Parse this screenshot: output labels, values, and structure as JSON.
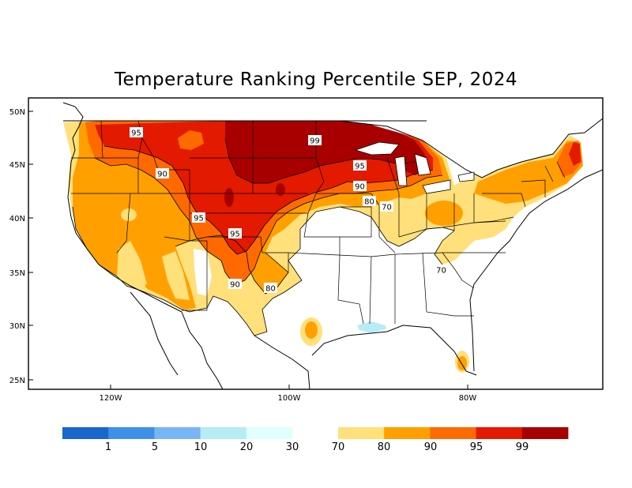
{
  "title": "Temperature Ranking Percentile SEP, 2024",
  "axes": {
    "lat_labels": [
      "50N",
      "45N",
      "40N",
      "35N",
      "30N",
      "25N"
    ],
    "lon_labels": [
      "120W",
      "100W",
      "80W"
    ]
  },
  "contour_labels": [
    "95",
    "90",
    "95",
    "95",
    "99",
    "95",
    "90",
    "80",
    "70",
    "90",
    "80",
    "70"
  ],
  "legend": {
    "labels": [
      "1",
      "5",
      "10",
      "20",
      "30",
      "70",
      "80",
      "90",
      "95",
      "99"
    ],
    "cold_colors": [
      "#1a66cc",
      "#3d8fe8",
      "#78b5f5",
      "#b5ecf5",
      "#e0fffd"
    ],
    "warm_colors": [
      "#ffe07a",
      "#ffa000",
      "#ff6a00",
      "#e31a00",
      "#a80000"
    ]
  },
  "colors": {
    "p70": "#ffe07a",
    "p80": "#ffa000",
    "p90": "#ff6a00",
    "p95": "#e31a00",
    "p99": "#a80000",
    "cold": "#b5ecf5"
  }
}
